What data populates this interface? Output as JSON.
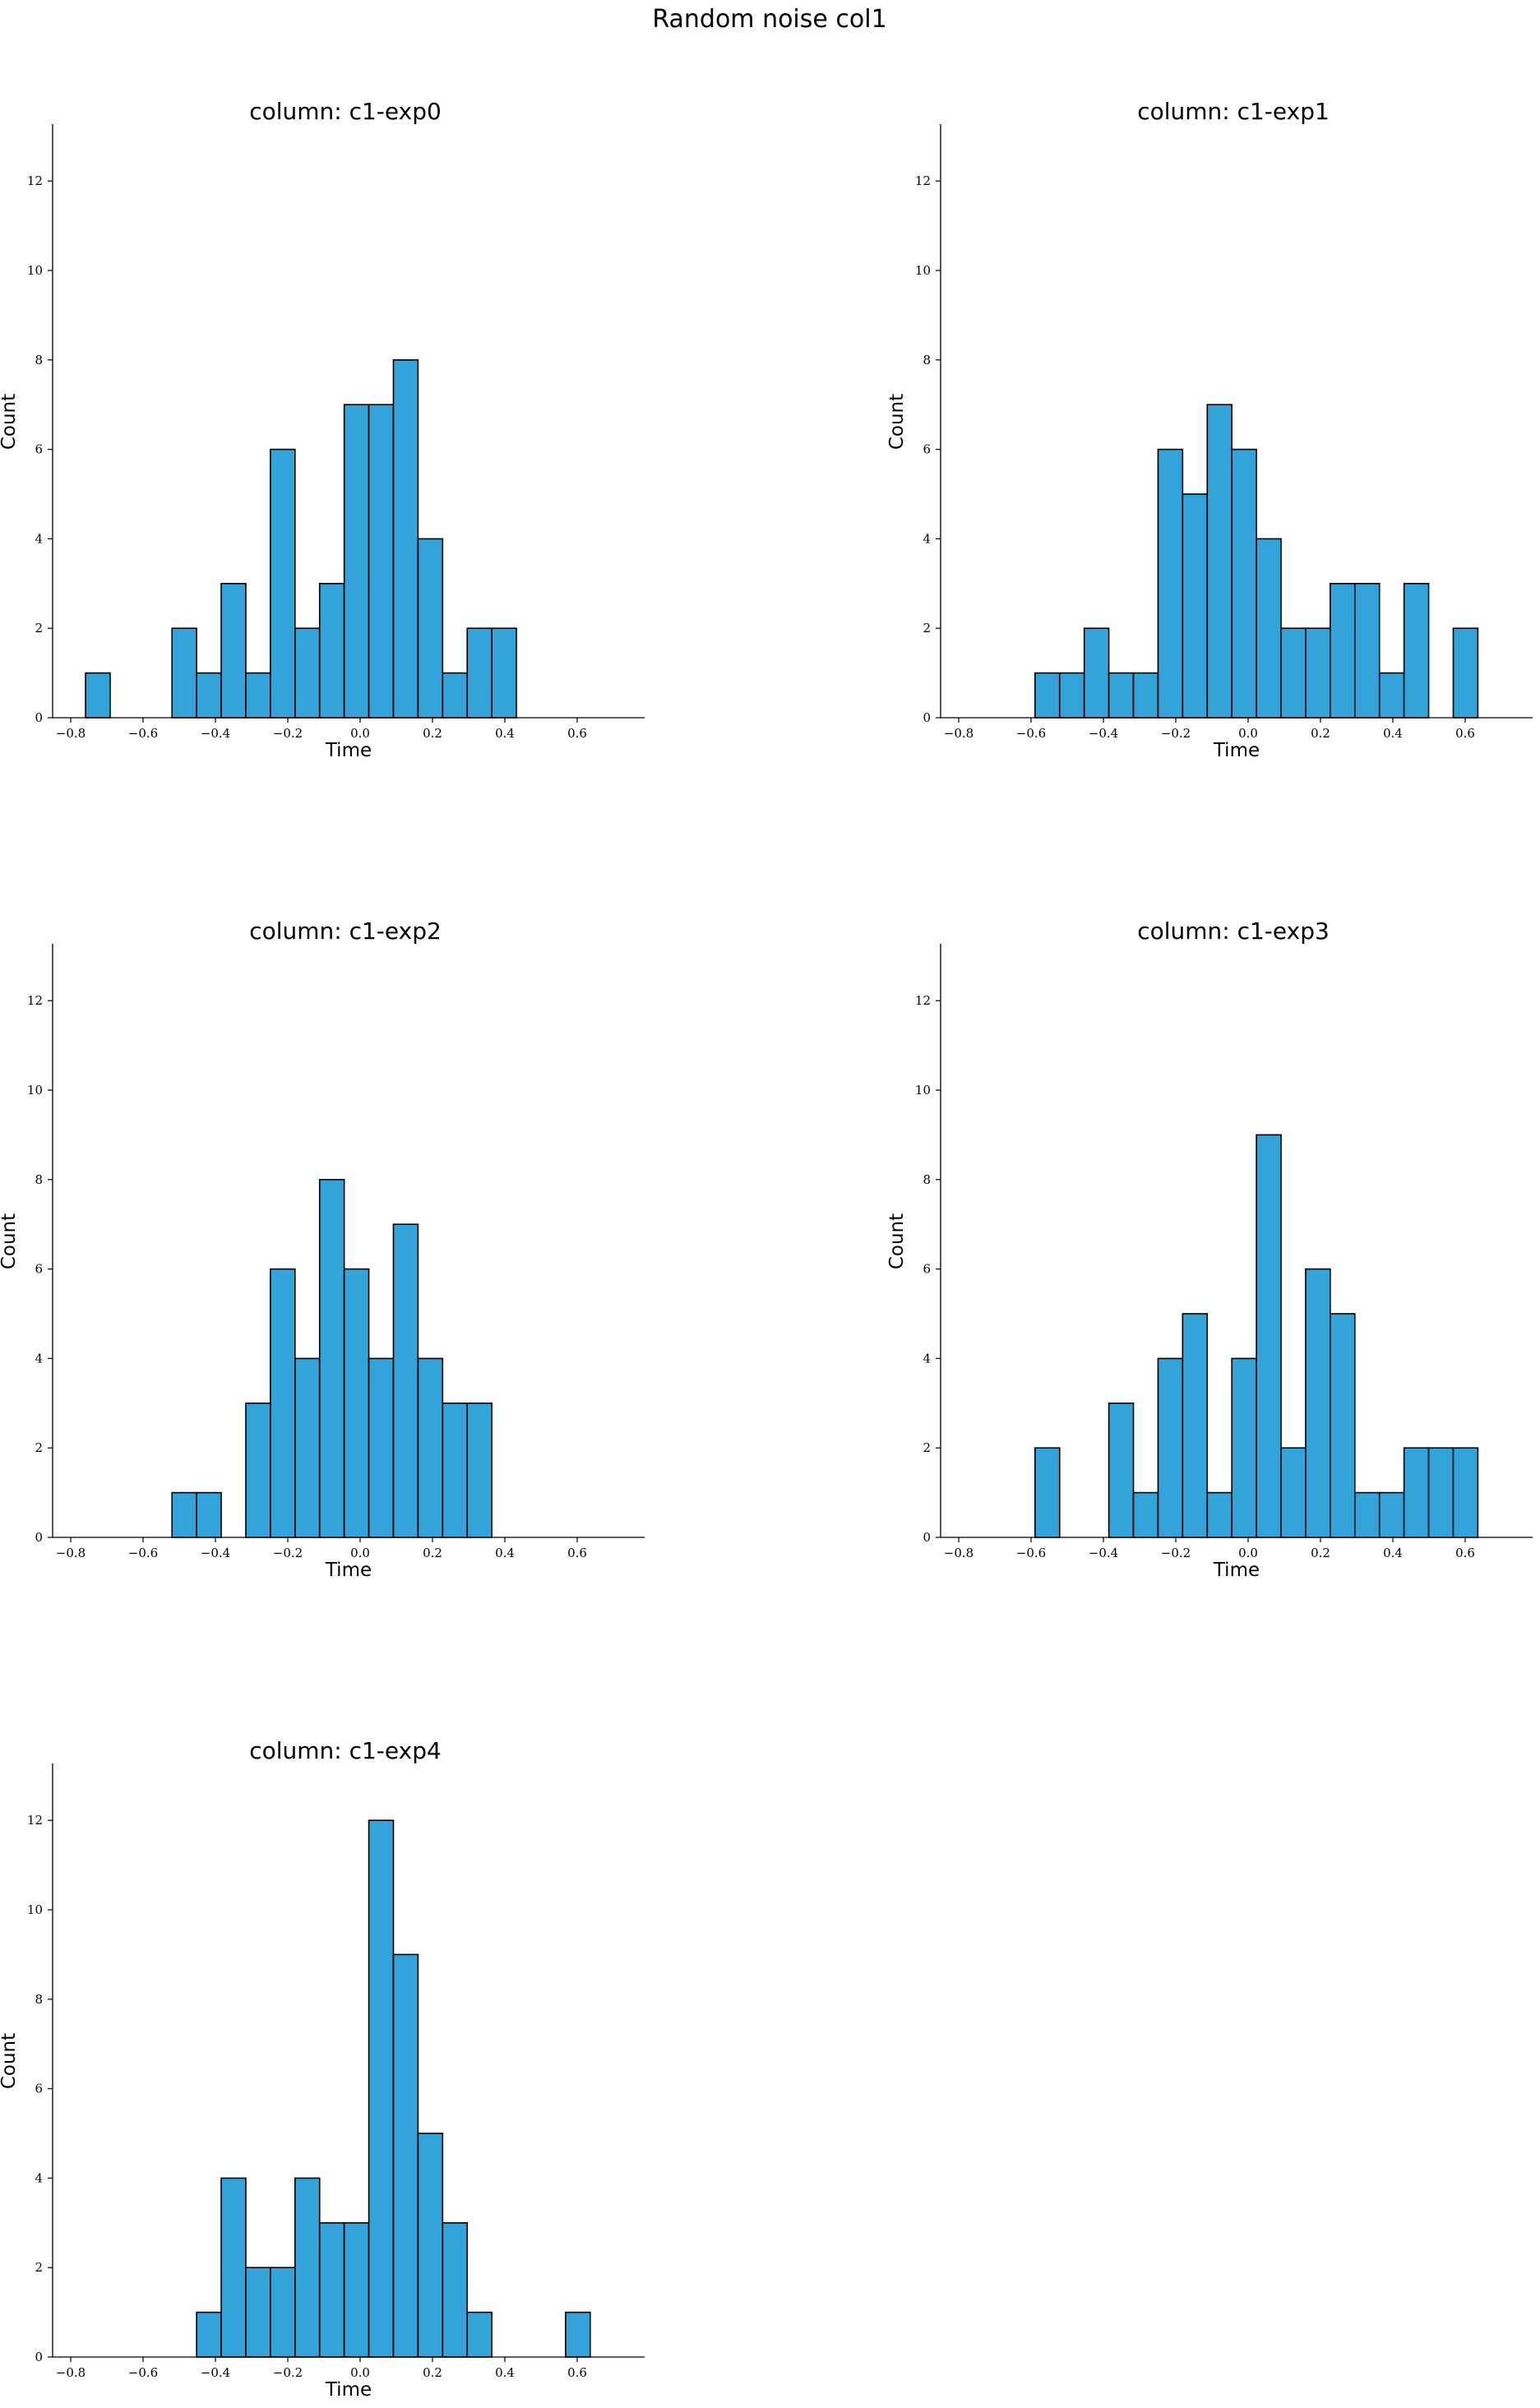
{
  "suptitle": "Random noise col1",
  "bar_color": "#33a3d9",
  "edge_color": "#000000",
  "chart_data": [
    {
      "type": "bar",
      "title": "column: c1-exp0",
      "xlabel": "Time",
      "ylabel": "Count",
      "bin_width": 0.068,
      "xlim": [
        -0.85,
        0.77
      ],
      "ylim": [
        0,
        13.2
      ],
      "xticks": [
        "−0.8",
        "−0.6",
        "−0.4",
        "−0.2",
        "0.0",
        "0.2",
        "0.4",
        "0.6"
      ],
      "yticks": [
        "0",
        "2",
        "4",
        "6",
        "8",
        "10",
        "12"
      ],
      "bins": [
        {
          "x": -0.725,
          "count": 1
        },
        {
          "x": -0.486,
          "count": 2
        },
        {
          "x": -0.418,
          "count": 1
        },
        {
          "x": -0.35,
          "count": 3
        },
        {
          "x": -0.282,
          "count": 1
        },
        {
          "x": -0.214,
          "count": 6
        },
        {
          "x": -0.146,
          "count": 2
        },
        {
          "x": -0.078,
          "count": 3
        },
        {
          "x": -0.01,
          "count": 7
        },
        {
          "x": 0.058,
          "count": 7
        },
        {
          "x": 0.126,
          "count": 8
        },
        {
          "x": 0.194,
          "count": 4
        },
        {
          "x": 0.262,
          "count": 1
        },
        {
          "x": 0.33,
          "count": 2
        },
        {
          "x": 0.398,
          "count": 2
        }
      ]
    },
    {
      "type": "bar",
      "title": "column: c1-exp1",
      "xlabel": "Time",
      "ylabel": "Count",
      "bin_width": 0.068,
      "xlim": [
        -0.85,
        0.77
      ],
      "ylim": [
        0,
        13.2
      ],
      "xticks": [
        "−0.8",
        "−0.6",
        "−0.4",
        "−0.2",
        "0.0",
        "0.2",
        "0.4",
        "0.6"
      ],
      "yticks": [
        "0",
        "2",
        "4",
        "6",
        "8",
        "10",
        "12"
      ],
      "bins": [
        {
          "x": -0.555,
          "count": 1
        },
        {
          "x": -0.487,
          "count": 1
        },
        {
          "x": -0.419,
          "count": 2
        },
        {
          "x": -0.351,
          "count": 1
        },
        {
          "x": -0.283,
          "count": 1
        },
        {
          "x": -0.215,
          "count": 6
        },
        {
          "x": -0.147,
          "count": 5
        },
        {
          "x": -0.079,
          "count": 7
        },
        {
          "x": -0.011,
          "count": 6
        },
        {
          "x": 0.057,
          "count": 4
        },
        {
          "x": 0.125,
          "count": 2
        },
        {
          "x": 0.193,
          "count": 2
        },
        {
          "x": 0.261,
          "count": 3
        },
        {
          "x": 0.329,
          "count": 3
        },
        {
          "x": 0.397,
          "count": 1
        },
        {
          "x": 0.465,
          "count": 3
        },
        {
          "x": 0.601,
          "count": 2
        }
      ]
    },
    {
      "type": "bar",
      "title": "column: c1-exp2",
      "xlabel": "Time",
      "ylabel": "Count",
      "bin_width": 0.068,
      "xlim": [
        -0.85,
        0.77
      ],
      "ylim": [
        0,
        13.2
      ],
      "xticks": [
        "−0.8",
        "−0.6",
        "−0.4",
        "−0.2",
        "0.0",
        "0.2",
        "0.4",
        "0.6"
      ],
      "yticks": [
        "0",
        "2",
        "4",
        "6",
        "8",
        "10",
        "12"
      ],
      "bins": [
        {
          "x": -0.486,
          "count": 1
        },
        {
          "x": -0.418,
          "count": 1
        },
        {
          "x": -0.282,
          "count": 3
        },
        {
          "x": -0.214,
          "count": 6
        },
        {
          "x": -0.146,
          "count": 4
        },
        {
          "x": -0.078,
          "count": 8
        },
        {
          "x": -0.01,
          "count": 6
        },
        {
          "x": 0.058,
          "count": 4
        },
        {
          "x": 0.126,
          "count": 7
        },
        {
          "x": 0.194,
          "count": 4
        },
        {
          "x": 0.262,
          "count": 3
        },
        {
          "x": 0.33,
          "count": 3
        }
      ]
    },
    {
      "type": "bar",
      "title": "column: c1-exp3",
      "xlabel": "Time",
      "ylabel": "Count",
      "bin_width": 0.068,
      "xlim": [
        -0.85,
        0.77
      ],
      "ylim": [
        0,
        13.2
      ],
      "xticks": [
        "−0.8",
        "−0.6",
        "−0.4",
        "−0.2",
        "0.0",
        "0.2",
        "0.4",
        "0.6"
      ],
      "yticks": [
        "0",
        "2",
        "4",
        "6",
        "8",
        "10",
        "12"
      ],
      "bins": [
        {
          "x": -0.555,
          "count": 2
        },
        {
          "x": -0.351,
          "count": 3
        },
        {
          "x": -0.283,
          "count": 1
        },
        {
          "x": -0.215,
          "count": 4
        },
        {
          "x": -0.147,
          "count": 5
        },
        {
          "x": -0.079,
          "count": 1
        },
        {
          "x": -0.011,
          "count": 4
        },
        {
          "x": 0.057,
          "count": 9
        },
        {
          "x": 0.125,
          "count": 2
        },
        {
          "x": 0.193,
          "count": 6
        },
        {
          "x": 0.261,
          "count": 5
        },
        {
          "x": 0.329,
          "count": 1
        },
        {
          "x": 0.397,
          "count": 1
        },
        {
          "x": 0.465,
          "count": 2
        },
        {
          "x": 0.533,
          "count": 2
        },
        {
          "x": 0.601,
          "count": 2
        }
      ]
    },
    {
      "type": "bar",
      "title": "column: c1-exp4",
      "xlabel": "Time",
      "ylabel": "Count",
      "bin_width": 0.068,
      "xlim": [
        -0.85,
        0.77
      ],
      "ylim": [
        0,
        13.2
      ],
      "xticks": [
        "−0.8",
        "−0.6",
        "−0.4",
        "−0.2",
        "0.0",
        "0.2",
        "0.4",
        "0.6"
      ],
      "yticks": [
        "0",
        "2",
        "4",
        "6",
        "8",
        "10",
        "12"
      ],
      "bins": [
        {
          "x": -0.418,
          "count": 1
        },
        {
          "x": -0.35,
          "count": 4
        },
        {
          "x": -0.282,
          "count": 2
        },
        {
          "x": -0.214,
          "count": 2
        },
        {
          "x": -0.146,
          "count": 4
        },
        {
          "x": -0.078,
          "count": 3
        },
        {
          "x": -0.01,
          "count": 3
        },
        {
          "x": 0.058,
          "count": 12
        },
        {
          "x": 0.126,
          "count": 9
        },
        {
          "x": 0.194,
          "count": 5
        },
        {
          "x": 0.262,
          "count": 3
        },
        {
          "x": 0.33,
          "count": 1
        },
        {
          "x": 0.602,
          "count": 1
        }
      ]
    }
  ]
}
